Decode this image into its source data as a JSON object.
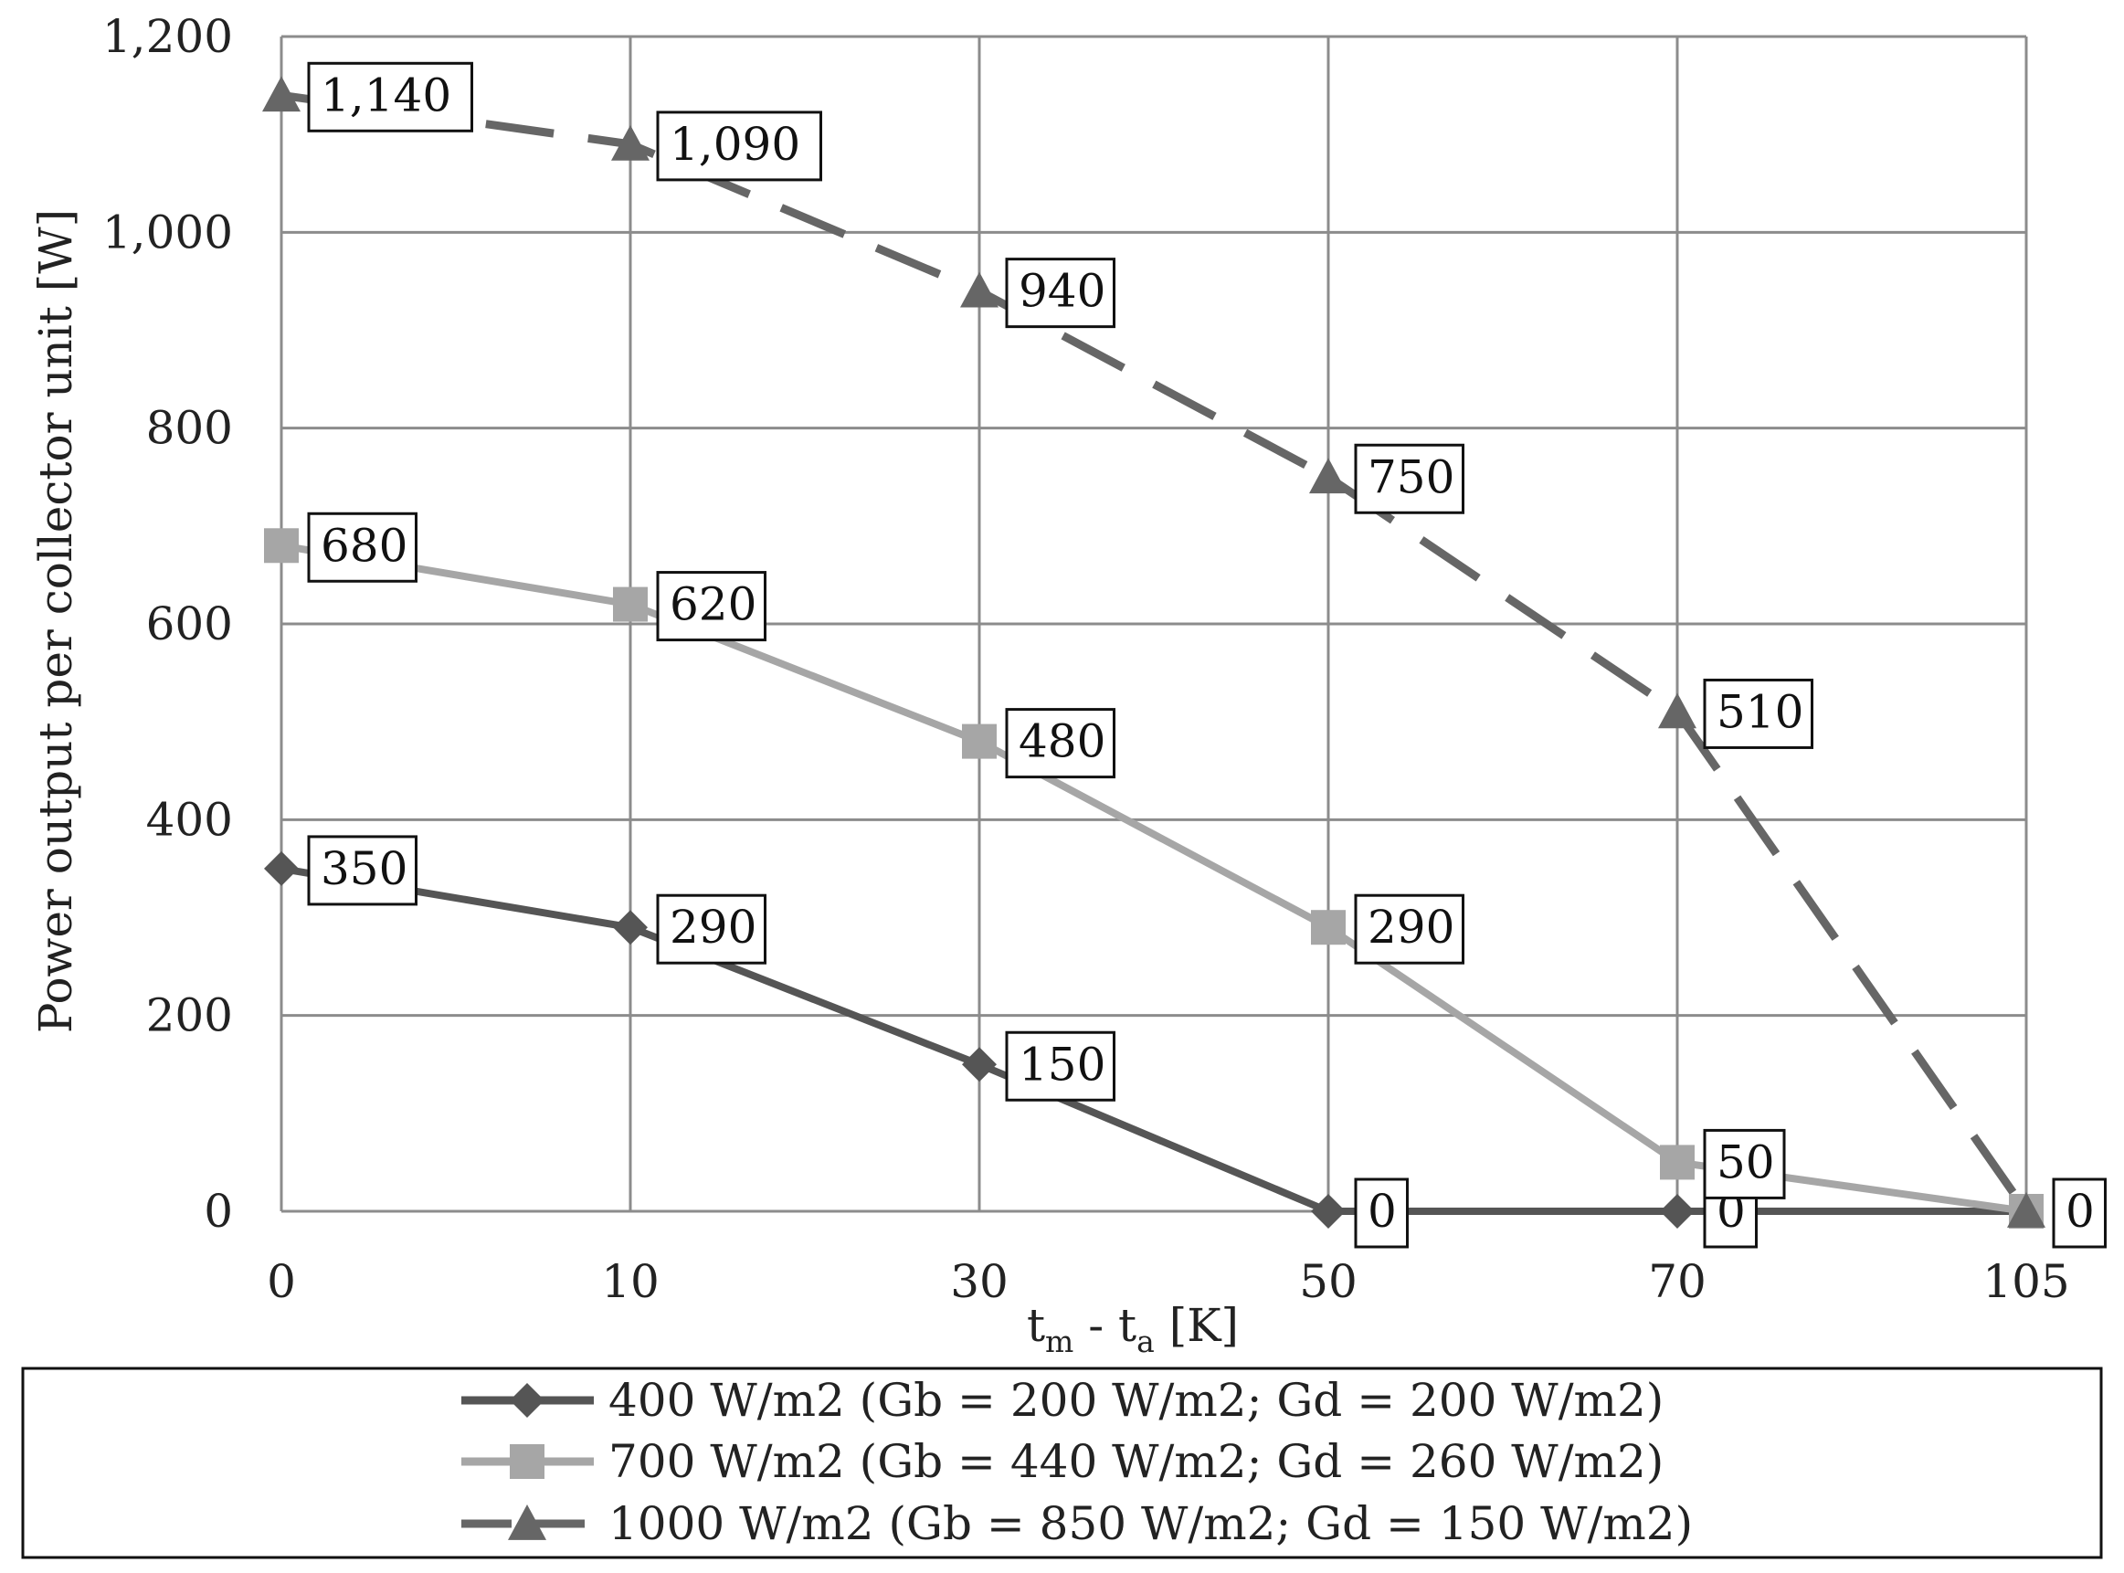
{
  "chart_data": {
    "type": "line",
    "categories": [
      "0",
      "10",
      "30",
      "50",
      "70",
      "105"
    ],
    "xlabel": {
      "main": "t",
      "sub1": "m",
      "mid": " - t",
      "sub2": "a",
      "end": " [K]"
    },
    "ylabel": "Power output per collector unit [W]",
    "yticks": [
      "0",
      "200",
      "400",
      "600",
      "800",
      "1,000",
      "1,200"
    ],
    "ylim": [
      0,
      1200
    ],
    "grid": true,
    "legend_position": "bottom",
    "series": [
      {
        "name": "400 W/m2 (Gb = 200 W/m2; Gd = 200 W/m2)",
        "marker": "diamond",
        "color": "#555555",
        "dashed": false,
        "values": [
          350,
          290,
          150,
          0,
          0,
          0
        ],
        "labels": [
          "350",
          "290",
          "150",
          "0",
          "0",
          null
        ]
      },
      {
        "name": "700 W/m2 (Gb = 440 W/m2; Gd = 260 W/m2)",
        "marker": "square",
        "color": "#a6a6a6",
        "dashed": false,
        "values": [
          680,
          620,
          480,
          290,
          50,
          0
        ],
        "labels": [
          "680",
          "620",
          "480",
          "290",
          "50",
          "0"
        ]
      },
      {
        "name": "1000 W/m2 (Gb = 850 W/m2; Gd = 150 W/m2)",
        "marker": "triangle",
        "color": "#666666",
        "dashed": true,
        "values": [
          1140,
          1090,
          940,
          750,
          510,
          0
        ],
        "labels": [
          "1,140",
          "1,090",
          "940",
          "750",
          "510",
          null
        ]
      }
    ]
  }
}
